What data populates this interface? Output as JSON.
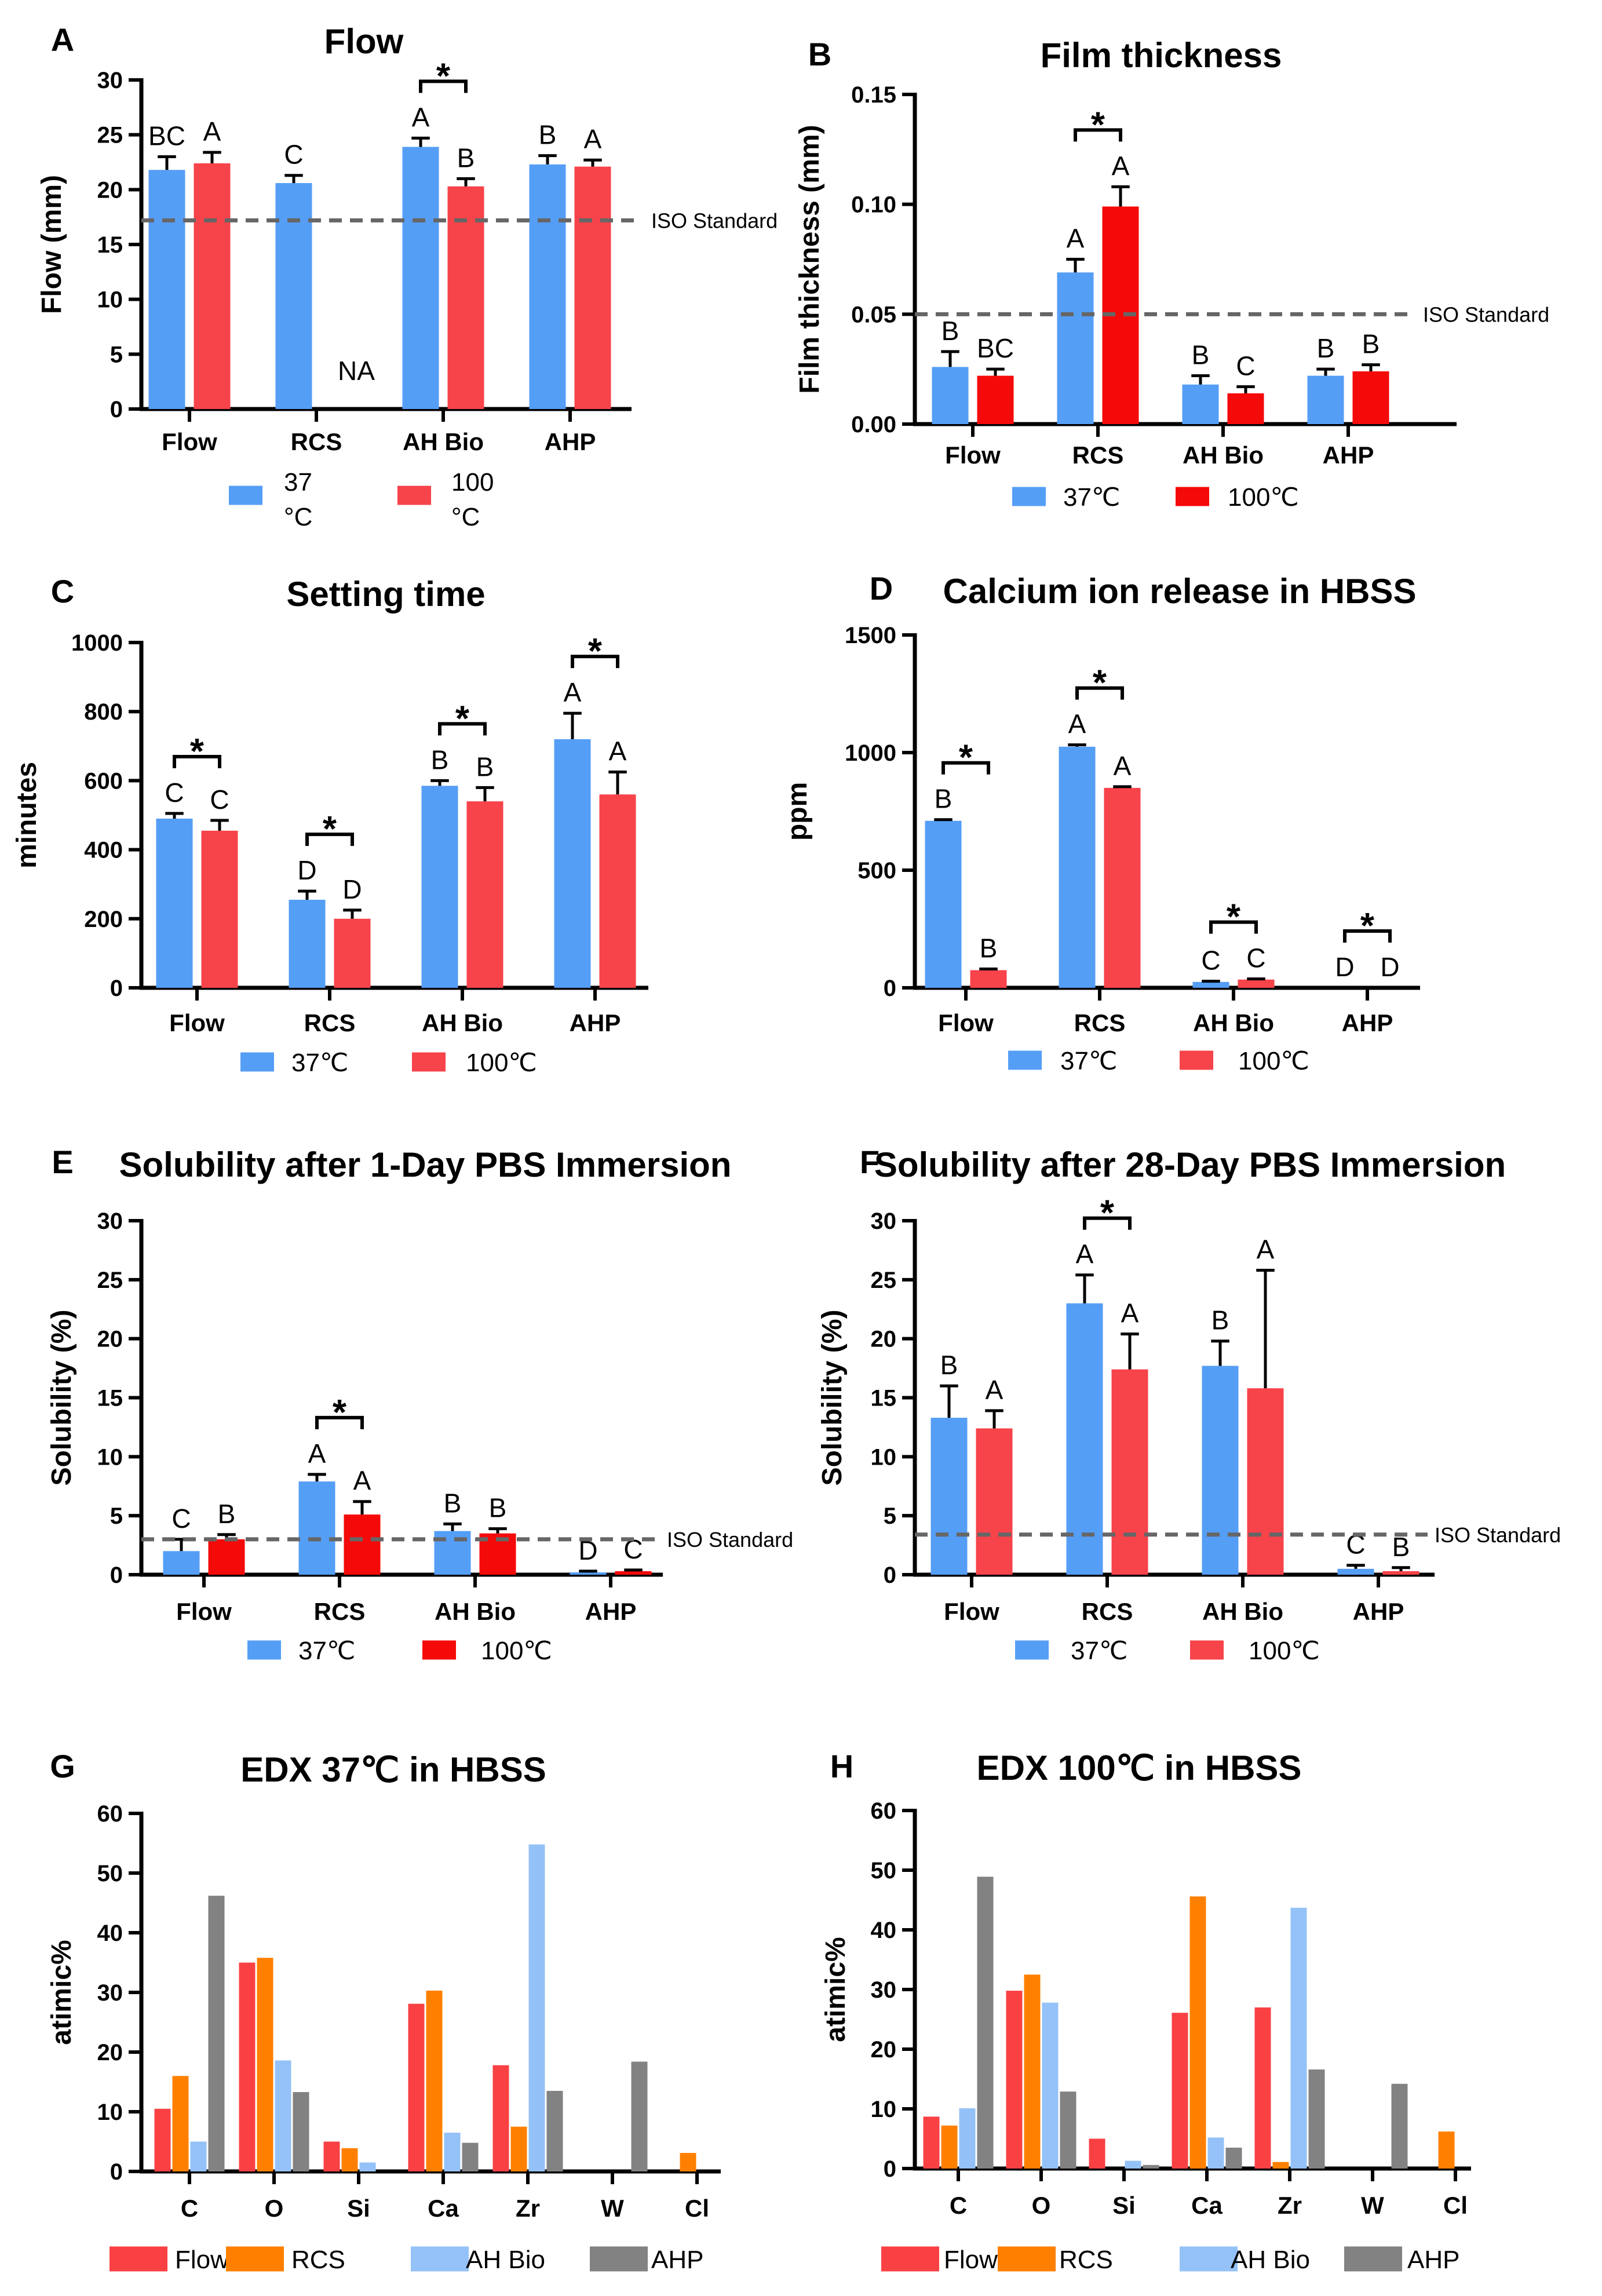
{
  "chart_data": [
    {
      "panel": "A",
      "type": "bar",
      "title": "Flow",
      "xlabel": "",
      "ylabel": "Flow (mm)",
      "categories": [
        "Flow",
        "RCS",
        "AH Bio",
        "AHP"
      ],
      "ylim": [
        0,
        30
      ],
      "yticks": [
        0,
        5,
        10,
        15,
        20,
        25,
        30
      ],
      "ytick_labels": [
        "0",
        "5",
        "10",
        "15",
        "20",
        "25",
        "30"
      ],
      "series": [
        {
          "name": "37 °C",
          "color": "#559ef6",
          "values": [
            21.8,
            20.6,
            23.9,
            22.3
          ],
          "errors": [
            1.2,
            0.7,
            0.8,
            0.8
          ],
          "letters": [
            "BC",
            "C",
            "A",
            "B"
          ]
        },
        {
          "name": "100 °C",
          "color": "#f7434a",
          "values": [
            22.4,
            null,
            20.3,
            22.1
          ],
          "errors": [
            1.0,
            null,
            0.7,
            0.6
          ],
          "letters": [
            "A",
            "",
            "B",
            "A"
          ]
        }
      ],
      "legend_labels": [
        [
          "37",
          "°C"
        ],
        [
          "100",
          "°C"
        ]
      ],
      "na": {
        "label": "NA",
        "category": "RCS",
        "series": "100 °C"
      },
      "iso_standard": {
        "value": 17.2,
        "label": "ISO Standard"
      },
      "significant": [
        "AH Bio"
      ],
      "sig_label": "*"
    },
    {
      "panel": "B",
      "type": "bar",
      "title": "Film thickness",
      "xlabel": "",
      "ylabel": "Film thickness (mm)",
      "categories": [
        "Flow",
        "RCS",
        "AH Bio",
        "AHP"
      ],
      "ylim": [
        0,
        0.15
      ],
      "yticks": [
        0,
        0.05,
        0.1,
        0.15
      ],
      "ytick_labels": [
        "0.00",
        "0.05",
        "0.10",
        "0.15"
      ],
      "series": [
        {
          "name": "37℃",
          "color": "#559ef6",
          "values": [
            0.026,
            0.069,
            0.018,
            0.022
          ],
          "errors": [
            0.007,
            0.006,
            0.004,
            0.003
          ],
          "letters": [
            "B",
            "A",
            "B",
            "B"
          ]
        },
        {
          "name": "100℃",
          "color": "#f50a0a",
          "values": [
            0.022,
            0.099,
            0.014,
            0.024
          ],
          "errors": [
            0.003,
            0.009,
            0.003,
            0.003
          ],
          "letters": [
            "BC",
            "A",
            "C",
            "B"
          ]
        }
      ],
      "legend_labels": [
        "37℃",
        "100℃"
      ],
      "iso_standard": {
        "value": 0.05,
        "label": "ISO Standard"
      },
      "significant": [
        "RCS"
      ],
      "sig_label": "*"
    },
    {
      "panel": "C",
      "type": "bar",
      "title": "Setting time",
      "xlabel": "",
      "ylabel": "minutes",
      "categories": [
        "Flow",
        "RCS",
        "AH Bio",
        "AHP"
      ],
      "ylim": [
        0,
        1000
      ],
      "yticks": [
        0,
        200,
        400,
        600,
        800,
        1000
      ],
      "ytick_labels": [
        "0",
        "200",
        "400",
        "600",
        "800",
        "1000"
      ],
      "series": [
        {
          "name": "37℃",
          "color": "#559ef6",
          "values": [
            490,
            255,
            585,
            720
          ],
          "errors": [
            15,
            25,
            15,
            75
          ],
          "letters": [
            "C",
            "D",
            "B",
            "A"
          ]
        },
        {
          "name": "100℃",
          "color": "#f7434a",
          "values": [
            455,
            200,
            540,
            560
          ],
          "errors": [
            30,
            25,
            40,
            65
          ],
          "letters": [
            "C",
            "D",
            "B",
            "A"
          ]
        }
      ],
      "legend_labels": [
        "37℃",
        "100℃"
      ],
      "significant": [
        "Flow",
        "RCS",
        "AH Bio",
        "AHP"
      ],
      "sig_label": "*"
    },
    {
      "panel": "D",
      "type": "bar",
      "title": "Calcium ion release in HBSS",
      "xlabel": "",
      "ylabel": "ppm",
      "categories": [
        "Flow",
        "RCS",
        "AH Bio",
        "AHP"
      ],
      "ylim": [
        0,
        1500
      ],
      "yticks": [
        0,
        500,
        1000,
        1500
      ],
      "ytick_labels": [
        "0",
        "500",
        "1000",
        "1500"
      ],
      "series": [
        {
          "name": "37℃",
          "color": "#559ef6",
          "values": [
            710,
            1025,
            25,
            0
          ],
          "errors": [
            5,
            8,
            3,
            0
          ],
          "letters": [
            "B",
            "A",
            "C",
            "D"
          ]
        },
        {
          "name": "100℃",
          "color": "#f7434a",
          "values": [
            75,
            850,
            35,
            0
          ],
          "errors": [
            5,
            5,
            3,
            0
          ],
          "letters": [
            "B",
            "A",
            "C",
            "D"
          ]
        }
      ],
      "legend_labels": [
        "37℃",
        "100℃"
      ],
      "significant": [
        "Flow",
        "RCS",
        "AH Bio",
        "AHP"
      ],
      "sig_label": "*"
    },
    {
      "panel": "E",
      "type": "bar",
      "title": "Solubility after 1-Day PBS Immersion",
      "xlabel": "",
      "ylabel": "Solubility (%)",
      "categories": [
        "Flow",
        "RCS",
        "AH Bio",
        "AHP"
      ],
      "ylim": [
        0,
        30
      ],
      "yticks": [
        0,
        5,
        10,
        15,
        20,
        25,
        30
      ],
      "ytick_labels": [
        "0",
        "5",
        "10",
        "15",
        "20",
        "25",
        "30"
      ],
      "series": [
        {
          "name": "37℃",
          "color": "#559ef6",
          "values": [
            2.0,
            7.9,
            3.7,
            0.2
          ],
          "errors": [
            1.0,
            0.6,
            0.6,
            0.1
          ],
          "letters": [
            "C",
            "A",
            "B",
            "D"
          ]
        },
        {
          "name": "100℃",
          "color": "#f50a0a",
          "values": [
            3.0,
            5.1,
            3.5,
            0.3
          ],
          "errors": [
            0.4,
            1.1,
            0.4,
            0.1
          ],
          "letters": [
            "B",
            "A",
            "B",
            "C"
          ]
        }
      ],
      "legend_labels": [
        "37℃",
        "100℃"
      ],
      "iso_standard": {
        "value": 3.0,
        "label": "ISO Standard"
      },
      "significant": [
        "RCS"
      ],
      "sig_label": "*"
    },
    {
      "panel": "F",
      "type": "bar",
      "title": "Solubility after 28-Day PBS Immersion",
      "xlabel": "",
      "ylabel": "Solubility (%)",
      "categories": [
        "Flow",
        "RCS",
        "AH Bio",
        "AHP"
      ],
      "ylim": [
        0,
        30
      ],
      "yticks": [
        0,
        5,
        10,
        15,
        20,
        25,
        30
      ],
      "ytick_labels": [
        "0",
        "5",
        "10",
        "15",
        "20",
        "25",
        "30"
      ],
      "series": [
        {
          "name": "37℃",
          "color": "#559ef6",
          "values": [
            13.3,
            23.0,
            17.7,
            0.5
          ],
          "errors": [
            2.7,
            2.4,
            2.1,
            0.3
          ],
          "letters": [
            "B",
            "A",
            "B",
            "C"
          ]
        },
        {
          "name": "100℃",
          "color": "#f7434a",
          "values": [
            12.4,
            17.4,
            15.8,
            0.3
          ],
          "errors": [
            1.5,
            3.0,
            10.0,
            0.3
          ],
          "letters": [
            "A",
            "A",
            "A",
            "B"
          ]
        }
      ],
      "legend_labels": [
        "37℃",
        "100℃"
      ],
      "iso_standard": {
        "value": 3.4,
        "label": "ISO Standard"
      },
      "significant": [
        "RCS"
      ],
      "sig_label": "*"
    },
    {
      "panel": "G",
      "type": "bar",
      "title": "EDX 37℃ in HBSS",
      "xlabel": "",
      "ylabel": "atimic%",
      "categories": [
        "C",
        "O",
        "Si",
        "Ca",
        "Zr",
        "W",
        "Cl"
      ],
      "ylim": [
        0,
        60
      ],
      "yticks": [
        0,
        10,
        20,
        30,
        40,
        50,
        60
      ],
      "ytick_labels": [
        "0",
        "10",
        "20",
        "30",
        "40",
        "50",
        "60"
      ],
      "series": [
        {
          "name": "Flow",
          "color": "#f94144",
          "values": [
            10.5,
            35.0,
            5.0,
            28.1,
            17.8,
            0,
            0
          ]
        },
        {
          "name": "RCS",
          "color": "#ff8000",
          "values": [
            16.0,
            35.8,
            3.9,
            30.3,
            7.5,
            0,
            3.1
          ]
        },
        {
          "name": "AH Bio",
          "color": "#94c2f8",
          "values": [
            5.0,
            18.6,
            1.5,
            6.5,
            54.8,
            0,
            0
          ]
        },
        {
          "name": "AHP",
          "color": "#828282",
          "values": [
            46.2,
            13.3,
            0,
            4.8,
            13.5,
            18.4,
            0
          ]
        }
      ],
      "legend_labels": [
        "Flow",
        "RCS",
        "AH Bio",
        "AHP"
      ],
      "significant": []
    },
    {
      "panel": "H",
      "type": "bar",
      "title": "EDX 100℃ in HBSS",
      "xlabel": "",
      "ylabel": "atimic%",
      "categories": [
        "C",
        "O",
        "Si",
        "Ca",
        "Zr",
        "W",
        "Cl"
      ],
      "ylim": [
        0,
        60
      ],
      "yticks": [
        0,
        10,
        20,
        30,
        40,
        50,
        60
      ],
      "ytick_labels": [
        "0",
        "10",
        "20",
        "30",
        "40",
        "50",
        "60"
      ],
      "series": [
        {
          "name": "Flow",
          "color": "#f94144",
          "values": [
            8.7,
            29.8,
            5.0,
            26.1,
            27.0,
            0,
            0
          ]
        },
        {
          "name": "RCS",
          "color": "#ff8000",
          "values": [
            7.2,
            32.5,
            0,
            45.6,
            1.1,
            0,
            6.2
          ]
        },
        {
          "name": "AH Bio",
          "color": "#94c2f8",
          "values": [
            10.1,
            27.8,
            1.3,
            5.2,
            43.7,
            0,
            0
          ]
        },
        {
          "name": "AHP",
          "color": "#828282",
          "values": [
            48.9,
            12.9,
            0.6,
            3.5,
            16.6,
            14.2,
            0
          ]
        }
      ],
      "legend_labels": [
        "Flow",
        "RCS",
        "AH Bio",
        "AHP"
      ],
      "significant": []
    }
  ]
}
